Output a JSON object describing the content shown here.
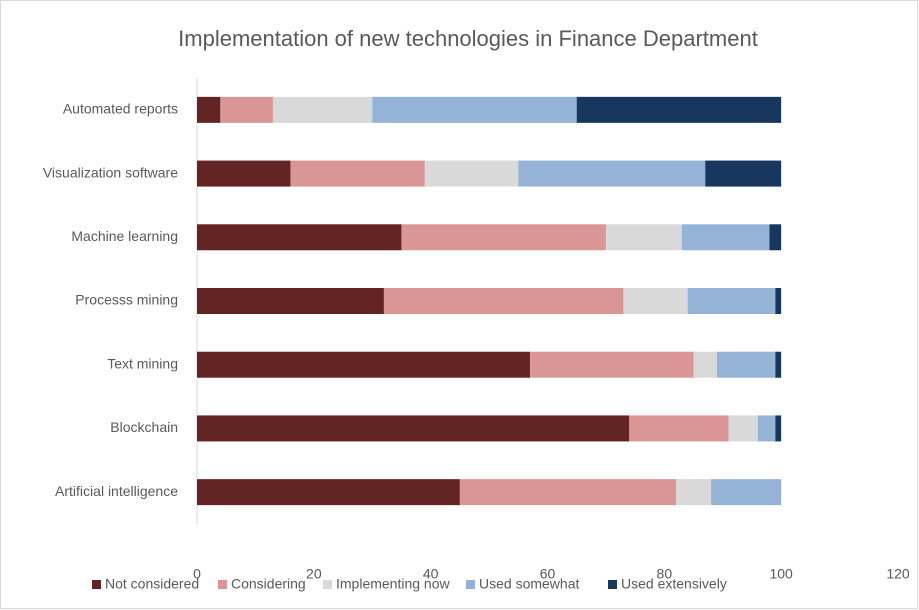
{
  "chart_data": {
    "type": "stacked_bar_horizontal",
    "title": "Implementation of new technologies in Finance Department",
    "categories": [
      "Automated reports",
      "Visualization software",
      "Machine learning",
      "Processs mining",
      "Text mining",
      "Blockchain",
      "Artificial intelligence"
    ],
    "series": [
      {
        "name": "Not considered",
        "color": "#632523",
        "values": [
          4,
          16,
          35,
          32,
          57,
          74,
          45
        ]
      },
      {
        "name": "Considering",
        "color": "#d99694",
        "values": [
          9,
          23,
          35,
          41,
          28,
          17,
          37
        ]
      },
      {
        "name": "Implementing now",
        "color": "#d9d9d9",
        "values": [
          17,
          16,
          13,
          11,
          4,
          5,
          6
        ]
      },
      {
        "name": "Used somewhat",
        "color": "#95b3d7",
        "values": [
          35,
          32,
          15,
          15,
          10,
          3,
          12
        ]
      },
      {
        "name": "Used extensively",
        "color": "#17375e",
        "values": [
          35,
          13,
          2,
          1,
          1,
          1,
          0
        ]
      }
    ],
    "xlim": [
      0,
      120
    ],
    "xticks": [
      0,
      20,
      40,
      60,
      80,
      100,
      120
    ],
    "legend": "bottom"
  }
}
